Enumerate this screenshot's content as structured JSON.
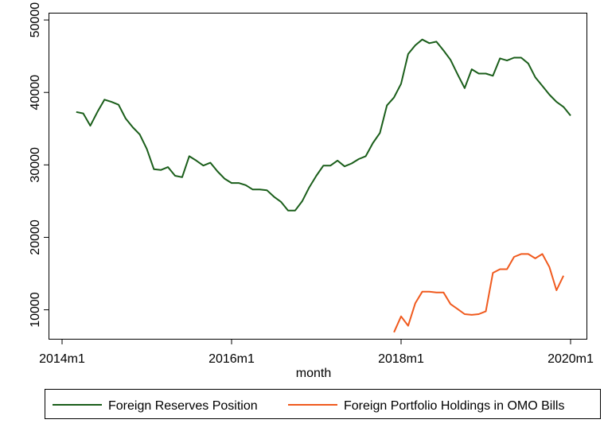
{
  "chart_data": {
    "type": "line",
    "title": "",
    "xlabel": "month",
    "ylabel": "",
    "xlim": [
      "2014-01",
      "2020-01"
    ],
    "ylim": [
      6000,
      51000
    ],
    "x_ticks": [
      "2014-01",
      "2016-01",
      "2018-01",
      "2020-01"
    ],
    "x_tick_labels": [
      "2014m1",
      "2016m1",
      "2018m1",
      "2020m1"
    ],
    "y_ticks": [
      10000,
      20000,
      30000,
      40000,
      50000
    ],
    "y_tick_labels": [
      "10000",
      "20000",
      "30000",
      "40000",
      "50000"
    ],
    "grid": false,
    "legend": "bottom",
    "series": [
      {
        "name": "Foreign Reserves Position",
        "color": "#1a5e1a",
        "points": [
          [
            "2014-03",
            37300
          ],
          [
            "2014-04",
            37100
          ],
          [
            "2014-05",
            35400
          ],
          [
            "2014-06",
            37300
          ],
          [
            "2014-07",
            39000
          ],
          [
            "2014-08",
            38700
          ],
          [
            "2014-09",
            38300
          ],
          [
            "2014-10",
            36400
          ],
          [
            "2014-11",
            35200
          ],
          [
            "2014-12",
            34200
          ],
          [
            "2015-01",
            32200
          ],
          [
            "2015-02",
            29400
          ],
          [
            "2015-03",
            29300
          ],
          [
            "2015-04",
            29700
          ],
          [
            "2015-05",
            28500
          ],
          [
            "2015-06",
            28300
          ],
          [
            "2015-07",
            31200
          ],
          [
            "2015-08",
            30600
          ],
          [
            "2015-09",
            29900
          ],
          [
            "2015-10",
            30300
          ],
          [
            "2015-11",
            29100
          ],
          [
            "2015-12",
            28100
          ],
          [
            "2016-01",
            27500
          ],
          [
            "2016-02",
            27500
          ],
          [
            "2016-03",
            27200
          ],
          [
            "2016-04",
            26600
          ],
          [
            "2016-05",
            26600
          ],
          [
            "2016-06",
            26500
          ],
          [
            "2016-07",
            25600
          ],
          [
            "2016-08",
            24900
          ],
          [
            "2016-09",
            23700
          ],
          [
            "2016-10",
            23700
          ],
          [
            "2016-11",
            25000
          ],
          [
            "2016-12",
            26900
          ],
          [
            "2017-01",
            28500
          ],
          [
            "2017-02",
            29900
          ],
          [
            "2017-03",
            29900
          ],
          [
            "2017-04",
            30600
          ],
          [
            "2017-05",
            29800
          ],
          [
            "2017-06",
            30200
          ],
          [
            "2017-07",
            30800
          ],
          [
            "2017-08",
            31200
          ],
          [
            "2017-09",
            33000
          ],
          [
            "2017-10",
            34400
          ],
          [
            "2017-11",
            38200
          ],
          [
            "2017-12",
            39300
          ],
          [
            "2018-01",
            41200
          ],
          [
            "2018-02",
            45300
          ],
          [
            "2018-03",
            46500
          ],
          [
            "2018-04",
            47300
          ],
          [
            "2018-05",
            46800
          ],
          [
            "2018-06",
            47000
          ],
          [
            "2018-07",
            45800
          ],
          [
            "2018-08",
            44500
          ],
          [
            "2018-09",
            42500
          ],
          [
            "2018-10",
            40600
          ],
          [
            "2018-11",
            43200
          ],
          [
            "2018-12",
            42600
          ],
          [
            "2019-01",
            42600
          ],
          [
            "2019-02",
            42300
          ],
          [
            "2019-03",
            44700
          ],
          [
            "2019-04",
            44400
          ],
          [
            "2019-05",
            44800
          ],
          [
            "2019-06",
            44800
          ],
          [
            "2019-07",
            44000
          ],
          [
            "2019-08",
            42100
          ],
          [
            "2019-09",
            40900
          ],
          [
            "2019-10",
            39700
          ],
          [
            "2019-11",
            38700
          ],
          [
            "2019-12",
            38000
          ],
          [
            "2020-01",
            36800
          ]
        ]
      },
      {
        "name": "Foreign Portfolio Holdings in OMO Bills",
        "color": "#f05a1e",
        "points": [
          [
            "2017-12",
            6900
          ],
          [
            "2018-01",
            9100
          ],
          [
            "2018-02",
            7800
          ],
          [
            "2018-03",
            10900
          ],
          [
            "2018-04",
            12500
          ],
          [
            "2018-05",
            12500
          ],
          [
            "2018-06",
            12400
          ],
          [
            "2018-07",
            12400
          ],
          [
            "2018-08",
            10800
          ],
          [
            "2018-09",
            10100
          ],
          [
            "2018-10",
            9400
          ],
          [
            "2018-11",
            9300
          ],
          [
            "2018-12",
            9400
          ],
          [
            "2019-01",
            9800
          ],
          [
            "2019-02",
            15100
          ],
          [
            "2019-03",
            15600
          ],
          [
            "2019-04",
            15600
          ],
          [
            "2019-05",
            17300
          ],
          [
            "2019-06",
            17700
          ],
          [
            "2019-07",
            17700
          ],
          [
            "2019-08",
            17100
          ],
          [
            "2019-09",
            17700
          ],
          [
            "2019-10",
            15900
          ],
          [
            "2019-11",
            12700
          ],
          [
            "2019-12",
            14700
          ]
        ]
      }
    ]
  }
}
